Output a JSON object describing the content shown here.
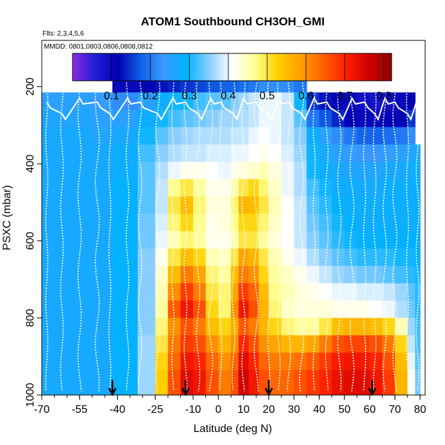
{
  "chart_data": {
    "type": "heatmap",
    "title": "ATOM1 Southbound CH3OH_GMI",
    "subtitle_flights": "Flts: 2,3,4,5,6",
    "subtitle_dates": "MMDD: 0801,0803,0806,0808,0812",
    "xlabel": "Latitude (deg N)",
    "ylabel": "PSXC (mbar)",
    "xlim": [
      -70,
      82
    ],
    "ylim": [
      1000,
      80
    ],
    "y_reversed": true,
    "x_tick_labels": [
      "-70",
      "-55",
      "-40",
      "-25",
      "-10",
      "0",
      "10",
      "20",
      "30",
      "40",
      "50",
      "60",
      "70",
      "80"
    ],
    "y_tick_labels": [
      "200",
      "400",
      "600",
      "800",
      "1000"
    ],
    "colorbar": {
      "range": [
        0.0,
        0.82
      ],
      "tick_labels": [
        "0.1",
        "0.2",
        "0.3",
        "0.4",
        "0.5",
        "0.6",
        "0.7",
        "0.8"
      ],
      "colors": [
        "#8a2be2",
        "#1f1fd8",
        "#0000b0",
        "#1060e8",
        "#3a9bff",
        "#00b2ff",
        "#8ccfff",
        "#ffffff",
        "#ffff90",
        "#ffd000",
        "#ffa000",
        "#ff6000",
        "#ff2000",
        "#d00000",
        "#900000"
      ]
    },
    "arrow_latitudes": [
      -42,
      -13,
      20,
      61
    ],
    "sounding_latitudes": [
      -68,
      -62,
      -55,
      -48,
      -43,
      -36,
      -31,
      -24,
      -18,
      -13,
      -8,
      -3,
      1,
      6,
      10,
      15,
      20,
      24,
      28,
      33,
      38,
      43,
      48,
      53,
      58,
      62,
      66,
      70,
      75,
      79
    ],
    "pressure_levels": [
      175,
      210,
      240,
      270,
      300,
      330,
      360,
      390,
      420,
      450,
      480,
      510,
      540,
      570,
      600,
      630,
      660,
      690,
      720,
      750,
      780,
      810,
      840,
      870,
      900,
      930,
      960,
      990
    ],
    "x_edges": [
      -70,
      -60,
      -50,
      -42,
      -32,
      -25,
      -20,
      -15,
      -10,
      -5,
      0,
      5,
      8,
      12,
      16,
      20,
      25,
      30,
      35,
      40,
      45,
      50,
      55,
      60,
      65,
      70,
      75,
      78,
      80
    ],
    "y_edges": [
      170,
      215,
      260,
      305,
      350,
      395,
      440,
      485,
      530,
      575,
      620,
      665,
      710,
      755,
      800,
      845,
      890,
      935,
      1000
    ],
    "values": [
      [
        null,
        null,
        null,
        0.1,
        0.12,
        0.13,
        0.14,
        0.15,
        0.16,
        0.17,
        0.18,
        0.18,
        0.19,
        0.2,
        0.22,
        0.22,
        0.22,
        0.2,
        null,
        null,
        null,
        null,
        null,
        null,
        null,
        null,
        null,
        null
      ],
      [
        0.25,
        0.25,
        0.24,
        0.22,
        0.25,
        0.28,
        0.3,
        0.3,
        0.32,
        0.33,
        0.33,
        0.35,
        0.36,
        0.38,
        0.4,
        0.4,
        0.38,
        0.3,
        0.15,
        0.13,
        0.12,
        0.1,
        0.09,
        0.08,
        0.09,
        0.1,
        0.12,
        null
      ],
      [
        0.26,
        0.26,
        0.25,
        0.25,
        0.28,
        0.3,
        0.32,
        0.33,
        0.34,
        0.35,
        0.36,
        0.36,
        0.37,
        0.38,
        0.4,
        0.4,
        0.38,
        0.33,
        0.2,
        0.17,
        0.14,
        0.12,
        0.1,
        0.1,
        0.11,
        0.12,
        0.15,
        null
      ],
      [
        0.27,
        0.27,
        0.26,
        0.27,
        0.3,
        0.33,
        0.35,
        0.36,
        0.37,
        0.37,
        0.37,
        0.38,
        0.38,
        0.4,
        0.41,
        0.4,
        0.38,
        0.35,
        0.28,
        0.25,
        0.22,
        0.2,
        0.18,
        0.18,
        0.19,
        0.2,
        0.22,
        null
      ],
      [
        0.27,
        0.27,
        0.27,
        0.28,
        0.32,
        0.35,
        0.37,
        0.38,
        0.38,
        0.39,
        0.39,
        0.4,
        0.4,
        0.41,
        0.42,
        0.41,
        0.39,
        0.36,
        0.3,
        0.27,
        0.25,
        0.24,
        0.23,
        0.23,
        0.24,
        0.25,
        0.26,
        0.27
      ],
      [
        0.27,
        0.27,
        0.27,
        0.28,
        0.33,
        0.37,
        0.4,
        0.42,
        0.42,
        0.41,
        0.4,
        0.42,
        0.43,
        0.44,
        0.45,
        0.43,
        0.4,
        0.37,
        0.3,
        0.28,
        0.27,
        0.26,
        0.26,
        0.26,
        0.27,
        0.27,
        0.28,
        0.28
      ],
      [
        0.27,
        0.27,
        0.27,
        0.29,
        0.33,
        0.38,
        0.47,
        0.5,
        0.46,
        0.42,
        0.42,
        0.45,
        0.5,
        0.52,
        0.48,
        0.44,
        0.4,
        0.37,
        0.32,
        0.3,
        0.28,
        0.28,
        0.27,
        0.27,
        0.28,
        0.28,
        0.28,
        0.28
      ],
      [
        0.27,
        0.27,
        0.27,
        0.29,
        0.33,
        0.38,
        0.5,
        0.55,
        0.48,
        0.43,
        0.43,
        0.48,
        0.56,
        0.55,
        0.5,
        0.45,
        0.41,
        0.38,
        0.33,
        0.31,
        0.29,
        0.28,
        0.28,
        0.28,
        0.28,
        0.28,
        0.28,
        0.28
      ],
      [
        0.27,
        0.27,
        0.27,
        0.29,
        0.34,
        0.39,
        0.48,
        0.52,
        0.47,
        0.42,
        0.43,
        0.47,
        0.52,
        0.52,
        0.48,
        0.44,
        0.41,
        0.38,
        0.34,
        0.32,
        0.3,
        0.29,
        0.28,
        0.28,
        0.28,
        0.28,
        0.28,
        0.28
      ],
      [
        0.27,
        0.27,
        0.27,
        0.29,
        0.34,
        0.4,
        0.45,
        0.48,
        0.46,
        0.42,
        0.42,
        0.45,
        0.5,
        0.5,
        0.46,
        0.43,
        0.41,
        0.38,
        0.35,
        0.33,
        0.31,
        0.3,
        0.29,
        0.29,
        0.29,
        0.29,
        0.29,
        0.28
      ],
      [
        0.27,
        0.27,
        0.27,
        0.29,
        0.35,
        0.42,
        0.5,
        0.55,
        0.52,
        0.45,
        0.44,
        0.5,
        0.58,
        0.56,
        0.5,
        0.45,
        0.42,
        0.4,
        0.37,
        0.35,
        0.33,
        0.32,
        0.31,
        0.31,
        0.31,
        0.3,
        0.3,
        0.29
      ],
      [
        0.27,
        0.27,
        0.27,
        0.29,
        0.35,
        0.44,
        0.55,
        0.62,
        0.58,
        0.48,
        0.46,
        0.55,
        0.62,
        0.6,
        0.52,
        0.46,
        0.44,
        0.42,
        0.4,
        0.38,
        0.36,
        0.35,
        0.34,
        0.34,
        0.33,
        0.32,
        0.31,
        0.3
      ],
      [
        0.27,
        0.27,
        0.27,
        0.29,
        0.35,
        0.45,
        0.6,
        0.68,
        0.62,
        0.5,
        0.48,
        0.58,
        0.68,
        0.64,
        0.55,
        0.47,
        0.45,
        0.43,
        0.42,
        0.41,
        0.4,
        0.4,
        0.39,
        0.39,
        0.38,
        0.36,
        0.33,
        0.31
      ],
      [
        0.27,
        0.27,
        0.27,
        0.29,
        0.35,
        0.46,
        0.65,
        0.72,
        0.66,
        0.52,
        0.48,
        0.6,
        0.72,
        0.66,
        0.56,
        0.48,
        0.44,
        0.43,
        0.43,
        0.43,
        0.42,
        0.42,
        0.42,
        0.41,
        0.4,
        0.37,
        0.34,
        0.31
      ],
      [
        0.27,
        0.27,
        0.27,
        0.29,
        0.35,
        0.48,
        0.6,
        0.66,
        0.62,
        0.55,
        0.52,
        0.57,
        0.65,
        0.62,
        0.56,
        0.52,
        0.48,
        0.46,
        0.46,
        0.5,
        0.55,
        0.56,
        0.56,
        0.55,
        0.52,
        0.45,
        0.36,
        0.32
      ],
      [
        0.27,
        0.27,
        0.27,
        0.29,
        0.36,
        0.5,
        0.62,
        0.68,
        0.66,
        0.6,
        0.56,
        0.6,
        0.7,
        0.66,
        0.6,
        0.58,
        0.56,
        0.56,
        0.58,
        0.62,
        0.66,
        0.67,
        0.67,
        0.66,
        0.62,
        0.52,
        0.38,
        0.32
      ],
      [
        0.27,
        0.27,
        0.27,
        0.29,
        0.36,
        0.52,
        0.64,
        0.72,
        0.7,
        0.64,
        0.6,
        0.64,
        0.74,
        0.7,
        0.64,
        0.62,
        0.62,
        0.63,
        0.65,
        0.68,
        0.71,
        0.72,
        0.72,
        0.7,
        0.66,
        0.55,
        0.4,
        0.33
      ],
      [
        0.27,
        0.27,
        0.27,
        0.29,
        0.36,
        0.53,
        0.66,
        0.74,
        0.72,
        0.66,
        0.62,
        0.66,
        0.76,
        0.72,
        0.66,
        0.64,
        0.64,
        0.66,
        0.68,
        0.7,
        0.73,
        0.74,
        0.74,
        0.72,
        0.68,
        0.56,
        0.41,
        0.34
      ]
    ]
  }
}
